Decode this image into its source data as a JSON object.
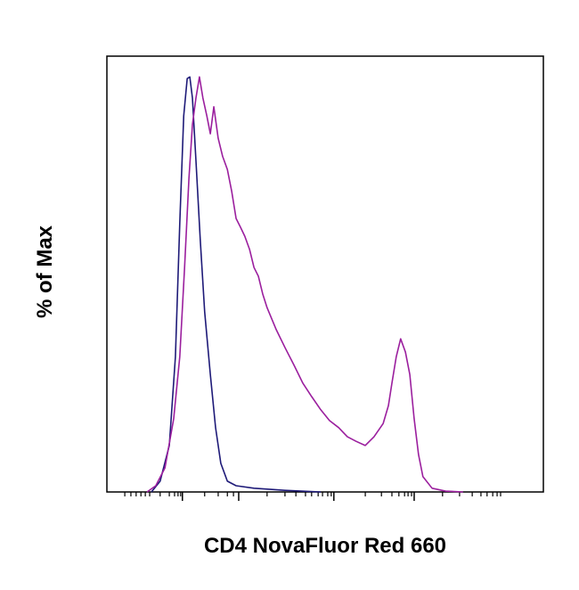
{
  "chart_data": {
    "type": "line",
    "xlabel": "CD4 NovaFluor Red 660",
    "ylabel": "% of Max",
    "xlim": [
      0,
      1000
    ],
    "ylim": [
      0,
      105
    ],
    "xticks": [
      173,
      302,
      520,
      704
    ],
    "xminorticks": [
      41,
      55,
      67,
      78,
      88,
      98,
      122,
      143,
      155,
      163,
      169,
      224,
      255,
      276,
      290,
      367,
      408,
      433,
      455,
      469,
      484,
      494,
      506,
      514,
      592,
      629,
      653,
      669,
      682,
      690,
      698,
      769,
      808,
      837,
      857,
      871,
      884,
      894,
      902
    ],
    "series": [
      {
        "color": "#1e1a78",
        "x": [
          102,
          122,
          143,
          157,
          167,
          176,
          184,
          190,
          196,
          204,
          214,
          224,
          237,
          249,
          261,
          276,
          296,
          337,
          408,
          490
        ],
        "values": [
          0,
          2.6,
          11.2,
          32.6,
          64.8,
          90.6,
          99.6,
          100,
          94.9,
          79.9,
          60.6,
          43.4,
          28.3,
          15.5,
          6.9,
          2.6,
          1.5,
          0.9,
          0.4,
          0
        ]
      },
      {
        "color": "#9b1f9e",
        "x": [
          92,
          112,
          133,
          153,
          167,
          178,
          188,
          196,
          204,
          212,
          220,
          229,
          237,
          245,
          255,
          265,
          276,
          286,
          296,
          306,
          316,
          327,
          337,
          347,
          357,
          367,
          388,
          408,
          429,
          449,
          469,
          490,
          510,
          531,
          551,
          571,
          592,
          612,
          633,
          645,
          653,
          663,
          673,
          684,
          694,
          704,
          714,
          724,
          745,
          776,
          816
        ],
        "values": [
          0,
          1.5,
          5.8,
          17.6,
          32.6,
          54.1,
          75.6,
          88.5,
          94.9,
          100,
          94.9,
          90.6,
          86.3,
          92.8,
          85.2,
          80.9,
          77.7,
          72.4,
          65.9,
          63.8,
          61.6,
          58.4,
          54.1,
          52.0,
          47.7,
          44.4,
          39.1,
          34.8,
          30.5,
          26.2,
          23.0,
          19.8,
          17.2,
          15.5,
          13.3,
          12.2,
          11.2,
          13.3,
          16.5,
          20.8,
          26.2,
          32.6,
          36.9,
          33.7,
          28.3,
          17.6,
          9.0,
          3.7,
          0.9,
          0.2,
          0
        ]
      }
    ]
  }
}
